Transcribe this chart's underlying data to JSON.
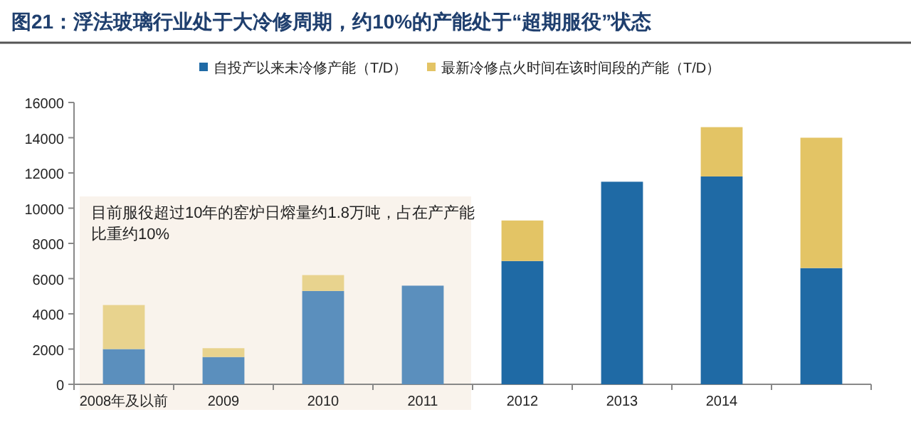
{
  "chart_data": {
    "type": "bar",
    "title": "图21：浮法玻璃行业处于大冷修周期，约10%的产能处于“超期服役”状态",
    "stacked": true,
    "legend": "top",
    "categories": [
      "2008年及以前",
      "2009",
      "2010",
      "2011",
      "2012",
      "2013",
      "2014",
      null
    ],
    "series": [
      {
        "name": "自投产以来未冷修产能（T/D）",
        "color": "#1f6aa5",
        "colors": [
          "#5b8fbd",
          "#5b8fbd",
          "#5b8fbd",
          "#5b8fbd",
          "#1f6aa5",
          "#1f6aa5",
          "#1f6aa5",
          "#1f6aa5"
        ],
        "values": [
          2000,
          1550,
          5300,
          5600,
          7000,
          11500,
          11800,
          6600
        ]
      },
      {
        "name": "最新冷修点火时间在该时间段的产能（T/D）",
        "color": "#e3c465",
        "colors": [
          "#e8d38e",
          "#e8d38e",
          "#e8d38e",
          "#e8d38e",
          "#e3c465",
          "#e3c465",
          "#e3c465",
          "#e3c465"
        ],
        "values": [
          2500,
          500,
          900,
          0,
          2300,
          0,
          2800,
          7400
        ]
      }
    ],
    "ylim": [
      0,
      16000
    ],
    "yticks": [
      0,
      2000,
      4000,
      6000,
      8000,
      10000,
      12000,
      14000,
      16000
    ],
    "annotations": [
      "目前服役超过10年的窑炉日熔量约1.8万吨，占在产产能比重约10%"
    ]
  }
}
